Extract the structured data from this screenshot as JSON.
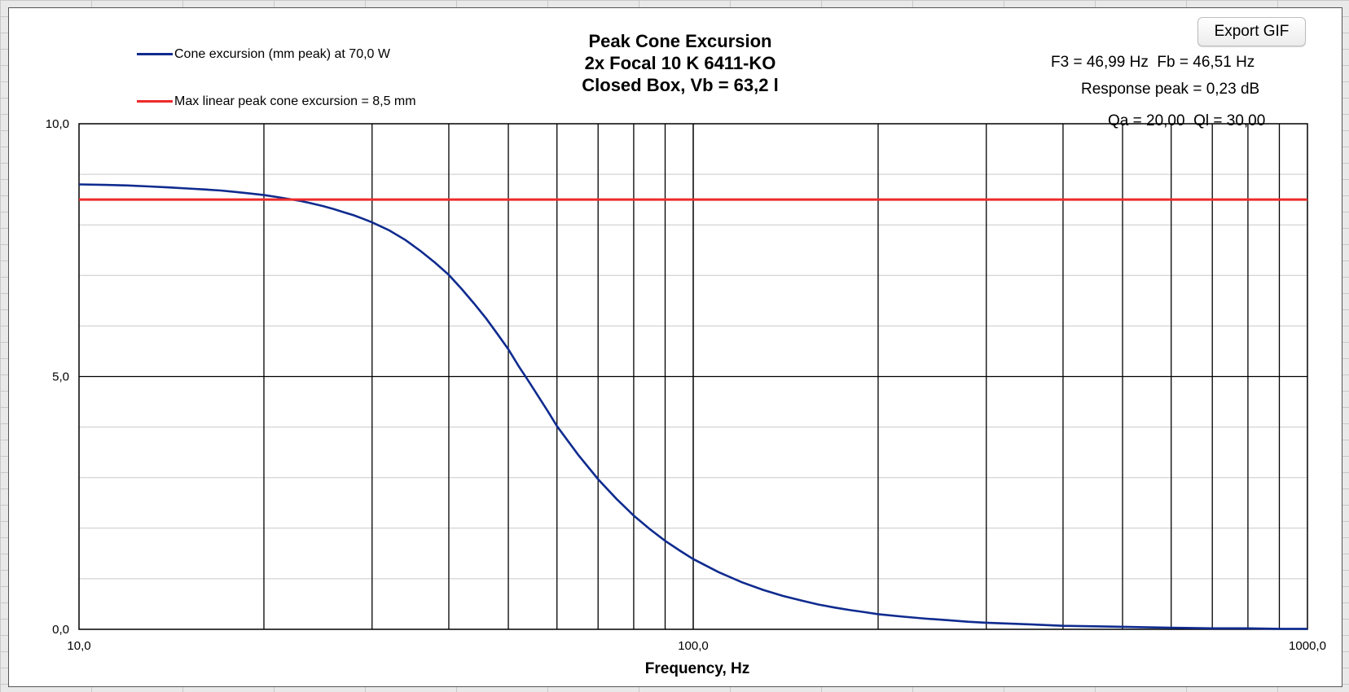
{
  "title_lines": [
    "Peak Cone Excursion",
    "2x Focal 10 K 6411-KO",
    "Closed Box, Vb = 63,2 l"
  ],
  "legend": [
    {
      "label": "Cone excursion (mm peak) at 70,0 W",
      "color": "#0f2b8f"
    },
    {
      "label": "Max linear peak cone excursion = 8,5 mm",
      "color": "#ee2a2a"
    }
  ],
  "export_button": "Export GIF",
  "info": {
    "line1": "F3 = 46,99 Hz  Fb = 46,51 Hz",
    "line2": "Response peak = 0,23 dB",
    "line3": "Qa = 20,00  Ql = 30,00"
  },
  "chart_data": {
    "type": "line",
    "title": "Peak Cone Excursion 2x Focal 10 K 6411-KO Closed Box, Vb = 63,2 l",
    "xlabel": "Frequency, Hz",
    "ylabel": "",
    "x_scale": "log",
    "xlim": [
      10,
      1000
    ],
    "ylim": [
      0,
      10
    ],
    "x_tick_labels": [
      "10,0",
      "100,0",
      "1000,0"
    ],
    "y_tick_labels": [
      "0,0",
      "5,0",
      "10,0"
    ],
    "grid": true,
    "legend_position": "top-left",
    "series": [
      {
        "name": "Cone excursion (mm peak) at 70,0 W",
        "color": "#0f2b8f",
        "x": [
          10,
          11,
          12,
          13,
          14,
          15,
          16,
          17,
          18,
          19,
          20,
          21,
          22,
          23,
          24,
          25,
          26,
          27,
          28,
          29,
          30,
          32,
          34,
          36,
          38,
          40,
          42,
          44,
          46,
          48,
          50,
          52,
          54,
          56,
          58,
          60,
          65,
          70,
          75,
          80,
          85,
          90,
          95,
          100,
          110,
          120,
          130,
          140,
          150,
          160,
          170,
          180,
          190,
          200,
          220,
          240,
          260,
          280,
          300,
          350,
          400,
          450,
          500,
          600,
          700,
          800,
          900,
          1000
        ],
        "y": [
          8.8,
          8.79,
          8.78,
          8.76,
          8.74,
          8.72,
          8.7,
          8.68,
          8.65,
          8.62,
          8.59,
          8.55,
          8.51,
          8.47,
          8.42,
          8.37,
          8.31,
          8.25,
          8.19,
          8.12,
          8.05,
          7.89,
          7.7,
          7.48,
          7.25,
          7.01,
          6.73,
          6.44,
          6.15,
          5.84,
          5.54,
          5.2,
          4.9,
          4.6,
          4.31,
          4.02,
          3.45,
          2.97,
          2.58,
          2.25,
          1.98,
          1.75,
          1.56,
          1.39,
          1.13,
          0.93,
          0.78,
          0.66,
          0.57,
          0.49,
          0.43,
          0.38,
          0.34,
          0.3,
          0.25,
          0.21,
          0.18,
          0.15,
          0.13,
          0.1,
          0.07,
          0.06,
          0.05,
          0.03,
          0.02,
          0.02,
          0.01,
          0.01
        ]
      },
      {
        "name": "Max linear peak cone excursion = 8,5 mm",
        "color": "#ee2a2a",
        "x": [
          10,
          1000
        ],
        "y": [
          8.5,
          8.5
        ]
      }
    ]
  }
}
